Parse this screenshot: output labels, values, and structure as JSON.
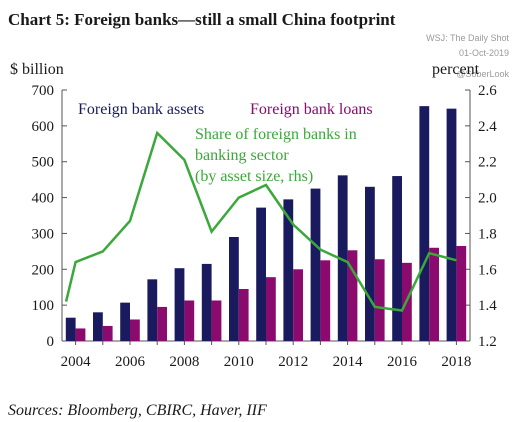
{
  "chart_data": {
    "type": "bar",
    "title": "Chart 5:  Foreign banks—still a small China footprint",
    "watermark": {
      "source": "WSJ: The Daily Shot",
      "date": "01-Oct-2019",
      "handle": "@SoberLook"
    },
    "ylabel_left": "$ billion",
    "ylabel_right": "percent",
    "source_note": "Sources: Bloomberg, CBIRC, Haver, IIF",
    "x": [
      2004,
      2005,
      2006,
      2007,
      2008,
      2009,
      2010,
      2011,
      2012,
      2013,
      2014,
      2015,
      2016,
      2017,
      2018
    ],
    "x_tick_labels": [
      "2004",
      "2006",
      "2008",
      "2010",
      "2012",
      "2014",
      "2016",
      "2018"
    ],
    "ylim_left": [
      0,
      700
    ],
    "yticks_left": [
      0,
      100,
      200,
      300,
      400,
      500,
      600,
      700
    ],
    "ylim_right": [
      1.2,
      2.6
    ],
    "yticks_right": [
      "1.2",
      "1.4",
      "1.6",
      "1.8",
      "2.0",
      "2.2",
      "2.4",
      "2.6"
    ],
    "grid": false,
    "series": [
      {
        "name": "Foreign bank assets",
        "axis": "left",
        "kind": "bar",
        "color": "#1a1a5e",
        "values": [
          65,
          80,
          107,
          172,
          203,
          215,
          290,
          372,
          395,
          425,
          462,
          430,
          460,
          655,
          648
        ]
      },
      {
        "name": "Foreign bank loans",
        "axis": "left",
        "kind": "bar",
        "color": "#8b0a6e",
        "values": [
          35,
          42,
          60,
          95,
          113,
          113,
          145,
          178,
          200,
          225,
          253,
          228,
          218,
          260,
          265
        ]
      },
      {
        "name": "Share of foreign banks in banking sector (by asset size, rhs)",
        "label_lines": [
          "Share of foreign banks in",
          "banking sector",
          "(by asset size, rhs)"
        ],
        "axis": "right",
        "kind": "line",
        "color": "#3aa83a",
        "points": [
          [
            2003.65,
            1.42
          ],
          [
            2004,
            1.64
          ],
          [
            2005,
            1.7
          ],
          [
            2006,
            1.87
          ],
          [
            2007,
            2.36
          ],
          [
            2008,
            2.21
          ],
          [
            2009,
            1.81
          ],
          [
            2010,
            2.0
          ],
          [
            2011,
            2.07
          ],
          [
            2012,
            1.85
          ],
          [
            2013,
            1.71
          ],
          [
            2014,
            1.64
          ],
          [
            2015,
            1.39
          ],
          [
            2016,
            1.37
          ],
          [
            2017,
            1.69
          ],
          [
            2018,
            1.65
          ]
        ]
      }
    ]
  }
}
